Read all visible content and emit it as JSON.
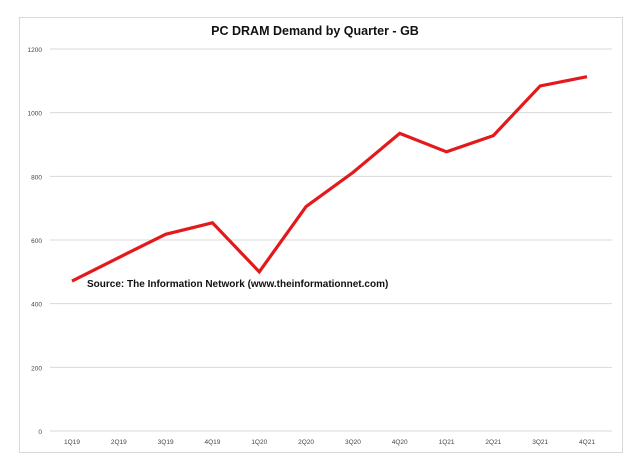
{
  "chart_data": {
    "type": "line",
    "title": "PC DRAM Demand by Quarter - GB",
    "xlabel": "",
    "ylabel": "",
    "categories": [
      "1Q19",
      "2Q19",
      "3Q19",
      "4Q19",
      "1Q20",
      "2Q20",
      "3Q20",
      "4Q20",
      "1Q21",
      "2Q21",
      "3Q21",
      "4Q21"
    ],
    "series": [
      {
        "name": "PC DRAM Demand (GB)",
        "color": "#e31a1c",
        "values": [
          471,
          545,
          618,
          654,
          500,
          705,
          812,
          935,
          877,
          928,
          1084,
          1113
        ]
      }
    ],
    "ylim": [
      0,
      1200
    ],
    "yticks": [
      0,
      200,
      400,
      600,
      800,
      1000,
      1200
    ],
    "grid": true,
    "legend": "none",
    "annotation": "Source: The Information Network (www.theinformationnet.com)"
  }
}
